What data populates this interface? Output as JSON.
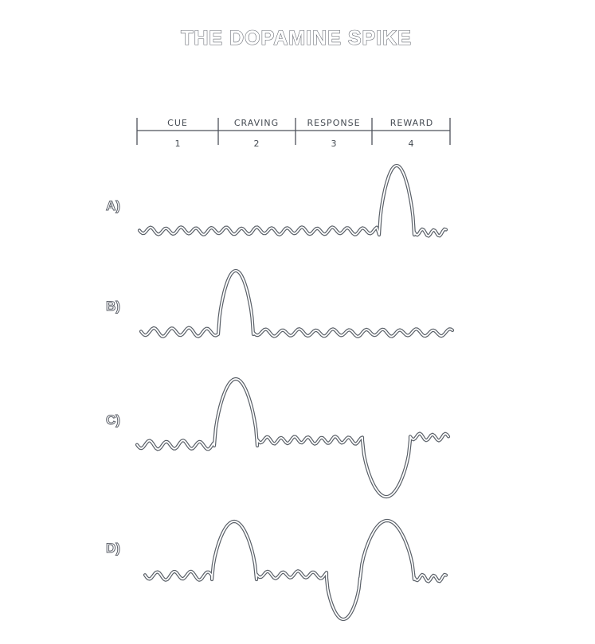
{
  "title": "THE DOPAMINE SPIKE",
  "phases": [
    {
      "label": "CUE",
      "number": "1"
    },
    {
      "label": "CRAVING",
      "number": "2"
    },
    {
      "label": "RESPONSE",
      "number": "3"
    },
    {
      "label": "REWARD",
      "number": "4"
    }
  ],
  "rows": [
    {
      "label": "A)",
      "spike_phase": "REWARD"
    },
    {
      "label": "B)",
      "spike_phase": "CUE-CRAVING"
    },
    {
      "label": "C)",
      "spike_phase": "CRAVING",
      "dip_phase": "REWARD"
    },
    {
      "label": "D)",
      "spike_phase": "CRAVING",
      "dip_phase": "RESPONSE",
      "second_spike_phase": "REWARD"
    }
  ]
}
